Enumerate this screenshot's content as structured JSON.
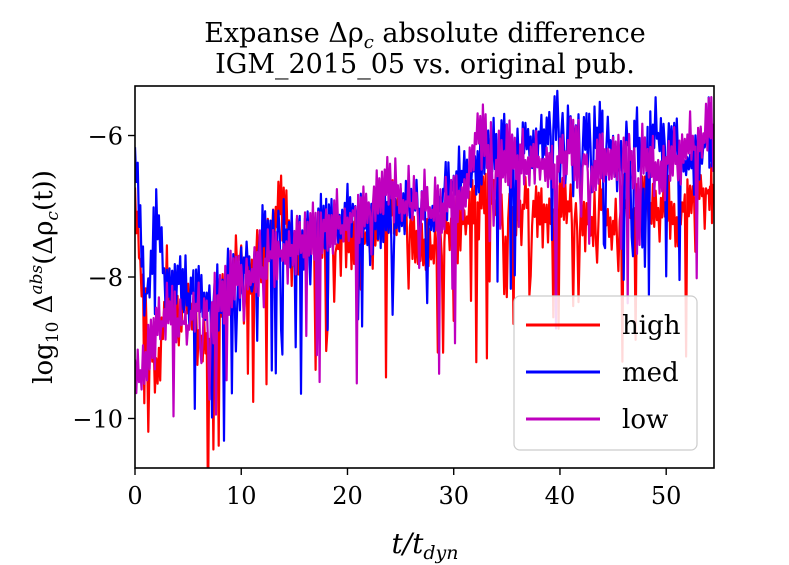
{
  "chart_data": {
    "type": "line",
    "title_line1": "Expanse Δρ",
    "title_sub": "c",
    "title_line1_rest": " absolute difference",
    "title_line2": "IGM_2015_05 vs. original pub.",
    "xlabel_main": "t/t",
    "xlabel_sub": "dyn",
    "ylabel_pre": "log",
    "ylabel_pre_sub": "10",
    "ylabel_delta": " Δ",
    "ylabel_sup": "abs",
    "ylabel_open": "(Δρ",
    "ylabel_sub": "c",
    "ylabel_close": "(t))",
    "xlim": [
      0,
      54.5
    ],
    "ylim": [
      -10.7,
      -5.3
    ],
    "xticks": [
      0,
      10,
      20,
      30,
      40,
      50
    ],
    "xtick_labels": [
      "0",
      "10",
      "20",
      "30",
      "40",
      "50"
    ],
    "yticks": [
      -10,
      -8,
      -6
    ],
    "ytick_labels": [
      "−10",
      "−8",
      "−6"
    ],
    "legend_location": "lower right",
    "series": [
      {
        "name": "high",
        "color": "#ff0000",
        "x": [
          0,
          1,
          2,
          3,
          4,
          5,
          6,
          7,
          8,
          9,
          10,
          11,
          12,
          13,
          14,
          15,
          16,
          17,
          18,
          19,
          20,
          21,
          22,
          23,
          24,
          25,
          26,
          27,
          28,
          29,
          30,
          31,
          32,
          33,
          34,
          35,
          36,
          37,
          38,
          39,
          40,
          41,
          42,
          43,
          44,
          45,
          46,
          47,
          48,
          49,
          50,
          51,
          52,
          53,
          54,
          54.5
        ],
        "y": [
          -7.0,
          -8.6,
          -9.5,
          -8.1,
          -8.5,
          -8.3,
          -8.9,
          -9.1,
          -8.4,
          -8.0,
          -7.7,
          -7.9,
          -7.6,
          -7.3,
          -7.0,
          -7.5,
          -7.6,
          -7.5,
          -7.4,
          -7.6,
          -7.3,
          -7.4,
          -7.5,
          -7.1,
          -7.1,
          -7.0,
          -7.3,
          -7.5,
          -7.6,
          -7.4,
          -7.3,
          -7.2,
          -7.0,
          -6.9,
          -7.0,
          -7.1,
          -7.2,
          -6.9,
          -7.1,
          -7.2,
          -7.0,
          -7.0,
          -7.1,
          -7.2,
          -7.0,
          -7.3,
          -7.0,
          -7.1,
          -6.8,
          -7.2,
          -7.0,
          -7.2,
          -6.9,
          -6.8,
          -6.8,
          -6.9
        ]
      },
      {
        "name": "med",
        "color": "#0000ff",
        "x": [
          0,
          1,
          2,
          3,
          4,
          5,
          6,
          7,
          8,
          9,
          10,
          11,
          12,
          13,
          14,
          15,
          16,
          17,
          18,
          19,
          20,
          21,
          22,
          23,
          24,
          25,
          26,
          27,
          28,
          29,
          30,
          31,
          32,
          33,
          34,
          35,
          36,
          37,
          38,
          39,
          40,
          41,
          42,
          43,
          44,
          45,
          46,
          47,
          48,
          49,
          50,
          51,
          52,
          53,
          54,
          54.5
        ],
        "y": [
          -6.2,
          -8.4,
          -7.0,
          -8.2,
          -8.0,
          -8.3,
          -8.1,
          -8.5,
          -8.2,
          -8.0,
          -8.0,
          -7.7,
          -7.5,
          -7.4,
          -7.3,
          -7.6,
          -7.4,
          -7.3,
          -7.2,
          -7.3,
          -7.1,
          -7.0,
          -7.4,
          -7.2,
          -7.2,
          -7.0,
          -6.9,
          -7.1,
          -7.2,
          -6.8,
          -6.6,
          -6.6,
          -6.4,
          -6.1,
          -6.3,
          -6.0,
          -6.2,
          -6.0,
          -6.1,
          -6.0,
          -5.6,
          -6.0,
          -6.1,
          -6.0,
          -5.9,
          -6.3,
          -6.2,
          -6.0,
          -6.3,
          -6.0,
          -6.1,
          -6.0,
          -6.5,
          -6.3,
          -6.0,
          -6.2
        ]
      },
      {
        "name": "low",
        "color": "#bf00bf",
        "x": [
          0,
          1,
          2,
          3,
          4,
          5,
          6,
          7,
          8,
          9,
          10,
          11,
          12,
          13,
          14,
          15,
          16,
          17,
          18,
          19,
          20,
          21,
          22,
          23,
          24,
          25,
          26,
          27,
          28,
          29,
          30,
          31,
          32,
          33,
          34,
          35,
          36,
          37,
          38,
          39,
          40,
          41,
          42,
          43,
          44,
          45,
          46,
          47,
          48,
          49,
          50,
          51,
          52,
          53,
          54,
          54.5
        ],
        "y": [
          -9.5,
          -9.2,
          -8.8,
          -8.5,
          -8.6,
          -8.7,
          -8.4,
          -8.6,
          -8.2,
          -8.1,
          -8.0,
          -7.9,
          -7.9,
          -7.7,
          -7.7,
          -7.5,
          -7.5,
          -7.4,
          -7.2,
          -7.3,
          -7.3,
          -7.0,
          -7.1,
          -6.8,
          -6.6,
          -6.9,
          -7.0,
          -6.9,
          -7.1,
          -7.0,
          -6.9,
          -6.8,
          -6.0,
          -6.1,
          -6.4,
          -6.2,
          -6.3,
          -6.4,
          -6.4,
          -6.5,
          -6.4,
          -6.2,
          -6.3,
          -6.5,
          -6.3,
          -6.5,
          -6.4,
          -6.3,
          -6.2,
          -6.6,
          -6.4,
          -6.3,
          -6.1,
          -6.2,
          -5.9,
          -6.0
        ]
      }
    ]
  }
}
